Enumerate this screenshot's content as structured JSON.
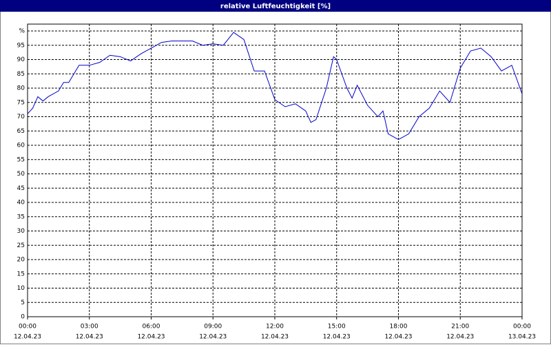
{
  "chart_data": {
    "type": "line",
    "title": "relative Luftfeuchtigkeit [%]",
    "x": [
      0,
      0.25,
      0.5,
      0.75,
      1,
      1.5,
      1.75,
      2,
      2.5,
      3,
      3.5,
      4,
      4.5,
      5,
      5.5,
      6,
      6.5,
      7,
      7.5,
      8,
      8.5,
      9,
      9.5,
      10,
      10.5,
      11,
      11.5,
      12,
      12.5,
      13,
      13.5,
      13.75,
      14,
      14.5,
      14.85,
      15,
      15.5,
      15.75,
      16,
      16.5,
      17,
      17.25,
      17.5,
      18,
      18.5,
      19,
      19.5,
      20,
      20.5,
      21,
      21.5,
      22,
      22.5,
      23,
      23.5,
      24
    ],
    "series": [
      {
        "name": "relative Luftfeuchtigkeit",
        "color": "#0000cc",
        "values": [
          71,
          73,
          77,
          75.5,
          77,
          79,
          82,
          82,
          88,
          88,
          89,
          91.5,
          91,
          89.5,
          92,
          94,
          96,
          96.5,
          96.5,
          96.5,
          95,
          95.5,
          95,
          99.5,
          97,
          86,
          86,
          76,
          73.5,
          74.5,
          72,
          68,
          69,
          80,
          91,
          90,
          80,
          76.5,
          81,
          74,
          70,
          72,
          64,
          62,
          64,
          70,
          73,
          79,
          75,
          87,
          93,
          94,
          91,
          86,
          88,
          78
        ]
      }
    ],
    "xlim": [
      0,
      24
    ],
    "xticks": [
      {
        "value": 0,
        "label": "00:00"
      },
      {
        "value": 3,
        "label": "03:00"
      },
      {
        "value": 6,
        "label": "06:00"
      },
      {
        "value": 9,
        "label": "09:00"
      },
      {
        "value": 12,
        "label": "12:00"
      },
      {
        "value": 15,
        "label": "15:00"
      },
      {
        "value": 18,
        "label": "18:00"
      },
      {
        "value": 21,
        "label": "21:00"
      },
      {
        "value": 24,
        "label": "00:00"
      }
    ],
    "xtick_dates": [
      "12.04.23",
      "12.04.23",
      "12.04.23",
      "12.04.23",
      "12.04.23",
      "12.04.23",
      "12.04.23",
      "12.04.23",
      "13.04.23"
    ],
    "ylim": [
      0,
      100
    ],
    "yticks": [
      0,
      5,
      10,
      15,
      20,
      25,
      30,
      35,
      40,
      45,
      50,
      55,
      60,
      65,
      70,
      75,
      80,
      85,
      90,
      95,
      {
        "value": 100,
        "label": "%"
      }
    ],
    "grid": true
  }
}
